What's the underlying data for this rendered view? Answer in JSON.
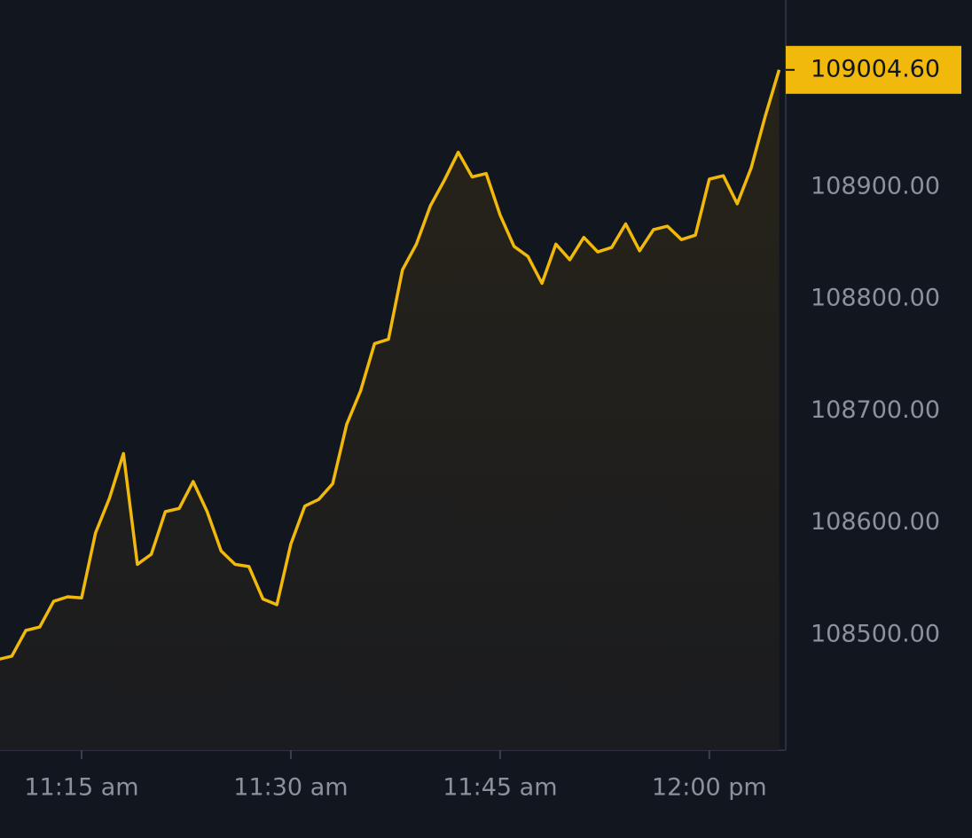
{
  "chart_data": {
    "type": "line",
    "categories": [
      null,
      null,
      null,
      null,
      null,
      null,
      "11:15 am",
      null,
      null,
      null,
      null,
      null,
      null,
      null,
      null,
      null,
      null,
      null,
      null,
      null,
      null,
      "11:30 am",
      null,
      null,
      null,
      null,
      null,
      null,
      null,
      null,
      null,
      null,
      null,
      null,
      null,
      null,
      "11:45 am",
      null,
      null,
      null,
      null,
      null,
      null,
      null,
      null,
      null,
      null,
      null,
      null,
      null,
      null,
      "12:00 pm",
      null,
      null,
      null,
      null,
      null
    ],
    "values": [
      108478,
      108481,
      108504,
      108507,
      108530,
      108534,
      108533,
      108591,
      108622,
      108662,
      108563,
      108572,
      108610,
      108613,
      108637,
      108610,
      108575,
      108563,
      108561,
      108532,
      108527,
      108581,
      108615,
      108621,
      108635,
      108688,
      108718,
      108760,
      108764,
      108826,
      108849,
      108883,
      108906,
      108931,
      108909,
      108912,
      108875,
      108847,
      108838,
      108814,
      108849,
      108835,
      108855,
      108842,
      108846,
      108867,
      108843,
      108862,
      108865,
      108853,
      108857,
      108907,
      108910,
      108885,
      108917,
      108963,
      109004.6
    ],
    "color": "#f0b90b",
    "ylim": [
      108397,
      109067
    ],
    "yticks": [
      {
        "value": 108500,
        "label": "108500.00"
      },
      {
        "value": 108600,
        "label": "108600.00"
      },
      {
        "value": 108700,
        "label": "108700.00"
      },
      {
        "value": 108800,
        "label": "108800.00"
      },
      {
        "value": 108900,
        "label": "108900.00"
      }
    ],
    "price_tag": {
      "value": 109004.6,
      "label": "109004.60"
    },
    "grid": false
  }
}
